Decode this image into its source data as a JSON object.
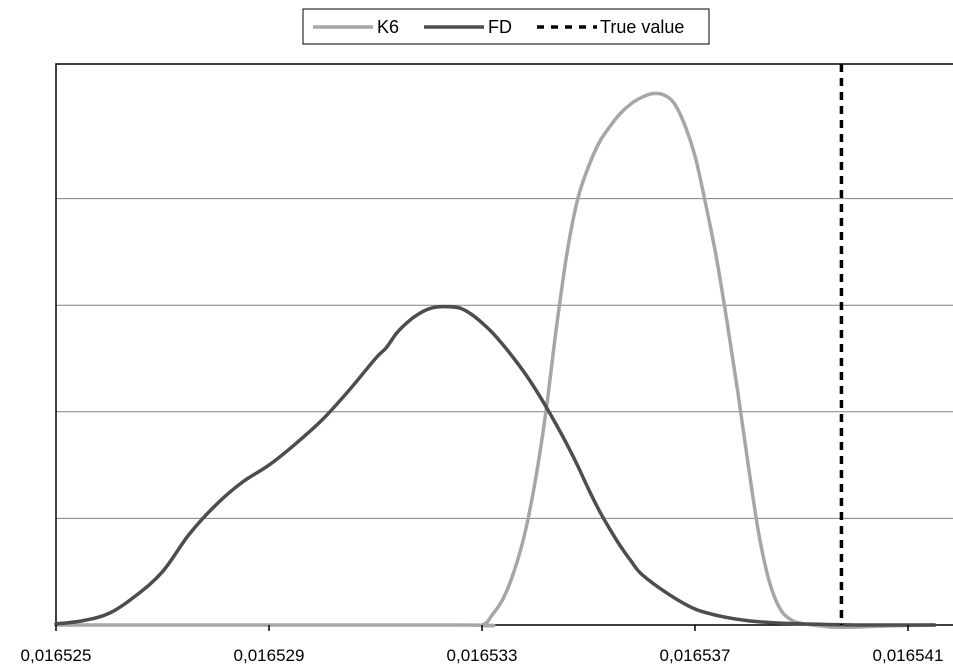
{
  "chart_data": {
    "type": "line",
    "title": "",
    "xlabel": "",
    "ylabel": "",
    "xlim": [
      0.016525,
      0.0165415
    ],
    "ylim": [
      0,
      1
    ],
    "x_ticks": [
      0.016525,
      0.016529,
      0.016533,
      0.016537,
      0.016541
    ],
    "x_tick_labels": [
      "0,016525",
      "0,016529",
      "0,016533",
      "0,016537",
      "0,016541"
    ],
    "y_gridlines": [
      0.2,
      0.4,
      0.6,
      0.8
    ],
    "grid": true,
    "legend_position": "top-center",
    "series": [
      {
        "name": "K6",
        "color": "#a6a6a6",
        "style": "solid",
        "x": [
          0.016525,
          0.0165325,
          0.016533,
          0.0165332,
          0.0165334,
          0.0165336,
          0.0165338,
          0.016534,
          0.0165342,
          0.0165344,
          0.0165346,
          0.0165348,
          0.016535,
          0.0165352,
          0.0165354,
          0.0165356,
          0.0165358,
          0.016536,
          0.0165362,
          0.0165364,
          0.0165366,
          0.0165368,
          0.016537,
          0.0165372,
          0.0165374,
          0.0165376,
          0.0165378,
          0.016538,
          0.0165382,
          0.0165384,
          0.0165386,
          0.0165388,
          0.016539,
          0.0165392,
          0.0165394,
          0.0165396,
          0.01654,
          0.0165405,
          0.0165415
        ],
        "values": [
          0.0,
          0.0,
          0.0,
          0.02,
          0.05,
          0.1,
          0.17,
          0.27,
          0.4,
          0.56,
          0.7,
          0.8,
          0.86,
          0.905,
          0.935,
          0.96,
          0.978,
          0.99,
          0.997,
          0.995,
          0.98,
          0.94,
          0.88,
          0.79,
          0.69,
          0.57,
          0.44,
          0.3,
          0.17,
          0.08,
          0.03,
          0.01,
          0.003,
          0.0,
          -0.002,
          -0.004,
          -0.004,
          -0.002,
          0.0
        ]
      },
      {
        "name": "FD",
        "color": "#4d4d4d",
        "style": "solid",
        "x": [
          0.016525,
          0.0165255,
          0.016526,
          0.0165265,
          0.016527,
          0.0165275,
          0.016528,
          0.0165285,
          0.016529,
          0.0165295,
          0.01653,
          0.0165305,
          0.016531,
          0.0165312,
          0.0165314,
          0.0165316,
          0.0165318,
          0.016532,
          0.0165322,
          0.0165324,
          0.0165326,
          0.0165328,
          0.016533,
          0.0165332,
          0.0165334,
          0.0165336,
          0.0165338,
          0.016534,
          0.0165342,
          0.0165344,
          0.0165346,
          0.0165348,
          0.016535,
          0.0165352,
          0.0165354,
          0.0165356,
          0.0165358,
          0.016536,
          0.0165365,
          0.016537,
          0.0165375,
          0.016538,
          0.0165385,
          0.016539,
          0.0165395,
          0.01654,
          0.0165405,
          0.016541,
          0.0165415
        ],
        "values": [
          0.002,
          0.008,
          0.022,
          0.055,
          0.1,
          0.17,
          0.225,
          0.268,
          0.3,
          0.34,
          0.385,
          0.44,
          0.5,
          0.52,
          0.548,
          0.568,
          0.583,
          0.593,
          0.597,
          0.597,
          0.594,
          0.583,
          0.567,
          0.548,
          0.525,
          0.5,
          0.473,
          0.443,
          0.41,
          0.375,
          0.338,
          0.298,
          0.255,
          0.215,
          0.18,
          0.148,
          0.12,
          0.095,
          0.058,
          0.03,
          0.016,
          0.008,
          0.004,
          0.002,
          0.001,
          0.0,
          0.0,
          0.0,
          0.0
        ]
      },
      {
        "name": "True value",
        "color": "#000000",
        "style": "dashed",
        "x": [
          0.01653975,
          0.01653975
        ],
        "values": [
          0,
          1.08
        ]
      }
    ]
  }
}
